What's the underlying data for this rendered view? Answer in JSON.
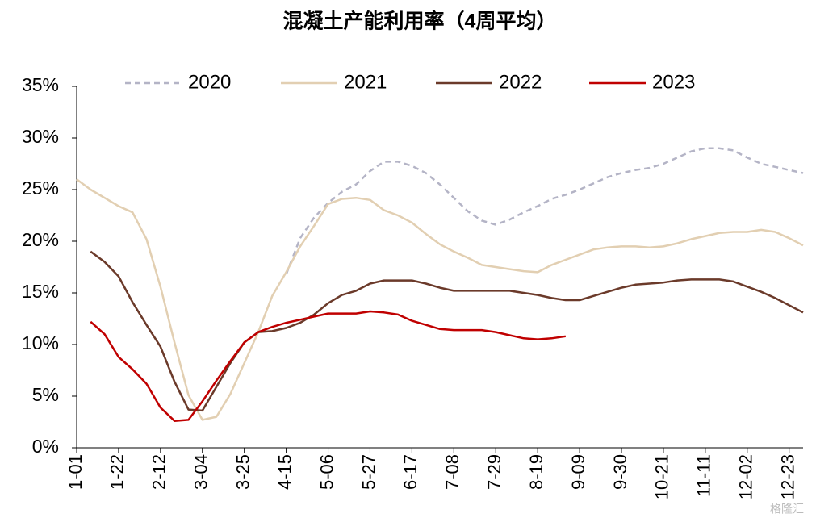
{
  "chart_data": {
    "type": "line",
    "title": "混凝土产能利用率（4周平均）",
    "categories": [
      "1-01",
      null,
      null,
      "1-22",
      null,
      null,
      "2-12",
      null,
      null,
      "3-04",
      null,
      null,
      "3-25",
      null,
      null,
      "4-15",
      null,
      null,
      "5-06",
      null,
      null,
      "5-27",
      null,
      null,
      "6-17",
      null,
      null,
      "7-08",
      null,
      null,
      "7-29",
      null,
      null,
      "8-19",
      null,
      null,
      "9-09",
      null,
      null,
      "9-30",
      null,
      null,
      "10-21",
      null,
      null,
      "11-11",
      null,
      null,
      "12-02",
      null,
      null,
      "12-23",
      null
    ],
    "ylim": [
      0,
      35
    ],
    "yticks": [
      {
        "value": 0,
        "label": "0%"
      },
      {
        "value": 5,
        "label": "5%"
      },
      {
        "value": 10,
        "label": "10%"
      },
      {
        "value": 15,
        "label": "15%"
      },
      {
        "value": 20,
        "label": "20%"
      },
      {
        "value": 25,
        "label": "25%"
      },
      {
        "value": 30,
        "label": "30%"
      },
      {
        "value": 35,
        "label": "35%"
      }
    ],
    "grid": false,
    "legend": "top",
    "series": [
      {
        "name": "2020",
        "color": "#b4b4c6",
        "dashed": true,
        "values": [
          null,
          null,
          null,
          null,
          null,
          null,
          null,
          null,
          null,
          null,
          null,
          null,
          null,
          null,
          null,
          16.8,
          20.3,
          22.3,
          23.7,
          24.8,
          25.5,
          26.8,
          27.7,
          27.7,
          27.3,
          26.6,
          25.5,
          24.2,
          22.9,
          22.0,
          21.6,
          22.1,
          22.8,
          23.4,
          24.1,
          24.5,
          25.0,
          25.6,
          26.2,
          26.6,
          26.9,
          27.1,
          27.5,
          28.1,
          28.7,
          29.0,
          29.0,
          28.8,
          28.1,
          27.5,
          27.2,
          26.9,
          26.6
        ]
      },
      {
        "name": "2021",
        "color": "#e2cfb2",
        "dashed": false,
        "values": [
          26.0,
          25.0,
          24.2,
          23.4,
          22.8,
          20.2,
          15.6,
          10.2,
          5.1,
          2.7,
          3.0,
          5.2,
          8.2,
          11.2,
          14.7,
          17.0,
          19.5,
          21.5,
          23.6,
          24.1,
          24.2,
          24.0,
          23.0,
          22.5,
          21.8,
          20.7,
          19.7,
          19.0,
          18.4,
          17.7,
          17.5,
          17.3,
          17.1,
          17.0,
          17.7,
          18.2,
          18.7,
          19.2,
          19.4,
          19.5,
          19.5,
          19.4,
          19.5,
          19.8,
          20.2,
          20.5,
          20.8,
          20.9,
          20.9,
          21.1,
          20.9,
          20.3,
          19.6
        ]
      },
      {
        "name": "2022",
        "color": "#6b3a2a",
        "dashed": false,
        "values": [
          null,
          19.0,
          18.0,
          16.6,
          14.1,
          11.9,
          9.8,
          6.4,
          3.7,
          3.6,
          5.9,
          8.2,
          10.2,
          11.2,
          11.3,
          11.6,
          12.1,
          12.9,
          14.0,
          14.8,
          15.2,
          15.9,
          16.2,
          16.2,
          16.2,
          15.9,
          15.5,
          15.2,
          15.2,
          15.2,
          15.2,
          15.2,
          15.0,
          14.8,
          14.5,
          14.3,
          14.3,
          14.7,
          15.1,
          15.5,
          15.8,
          15.9,
          16.0,
          16.2,
          16.3,
          16.3,
          16.3,
          16.1,
          15.6,
          15.1,
          14.5,
          13.8,
          13.1
        ]
      },
      {
        "name": "2023",
        "color": "#c00000",
        "dashed": false,
        "values": [
          null,
          12.2,
          11.0,
          8.8,
          7.6,
          6.2,
          3.9,
          2.6,
          2.7,
          4.5,
          6.5,
          8.4,
          10.2,
          11.2,
          11.7,
          12.1,
          12.4,
          12.7,
          13.0,
          13.0,
          13.0,
          13.2,
          13.1,
          12.9,
          12.3,
          11.9,
          11.5,
          11.4,
          11.4,
          11.4,
          11.2,
          10.9,
          10.6,
          10.5,
          10.6,
          10.8,
          null,
          null,
          null,
          null,
          null,
          null,
          null,
          null,
          null,
          null,
          null,
          null,
          null,
          null,
          null,
          null,
          null
        ]
      }
    ],
    "watermark": "格隆汇"
  }
}
